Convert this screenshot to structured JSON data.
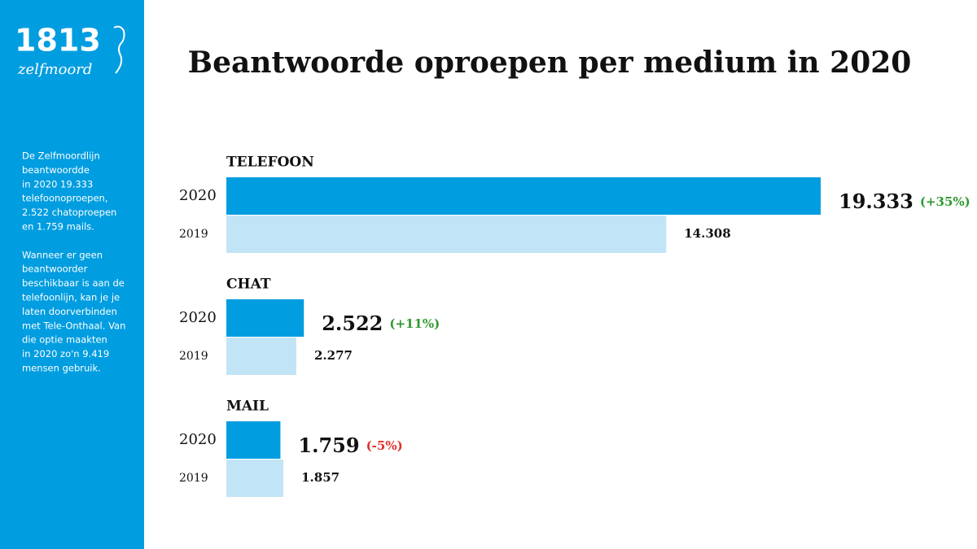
{
  "sidebar": {
    "logo": "1813",
    "logo_sub": "zelfmoord",
    "paragraphs": [
      [
        "De Zelfmoordlijn",
        "beantwoordde",
        "in 2020 19.333",
        "telefoonoproepen,",
        "2.522 chatoproepen",
        "en 1.759 mails."
      ],
      [
        "Wanneer er geen",
        "beantwoorder",
        "beschikbaar is aan de",
        "telefoonlijn, kan je je",
        "laten doorverbinden",
        "met Tele-Onthaal. Van",
        "die optie maakten",
        "in 2020 zo'n 9.419",
        "mensen gebruik."
      ]
    ]
  },
  "chart_data": {
    "type": "bar",
    "orientation": "horizontal",
    "title": "Beantwoorde oproepen per medium in 2020",
    "categories": [
      "TELEFOON",
      "CHAT",
      "MAIL"
    ],
    "series": [
      {
        "name": "2020",
        "color": "#009de0",
        "values": [
          19333,
          2522,
          1759
        ],
        "value_labels": [
          "19.333",
          "2.522",
          "1.759"
        ],
        "changes": [
          {
            "label": "(+35%)",
            "color": "#2f9a2f"
          },
          {
            "label": "(+11%)",
            "color": "#2f9a2f"
          },
          {
            "label": "(-5%)",
            "color": "#e0302a"
          }
        ]
      },
      {
        "name": "2019",
        "color": "#c2e4f7",
        "values": [
          14308,
          2277,
          1857
        ],
        "value_labels": [
          "14.308",
          "2.277",
          "1.857"
        ]
      }
    ]
  }
}
